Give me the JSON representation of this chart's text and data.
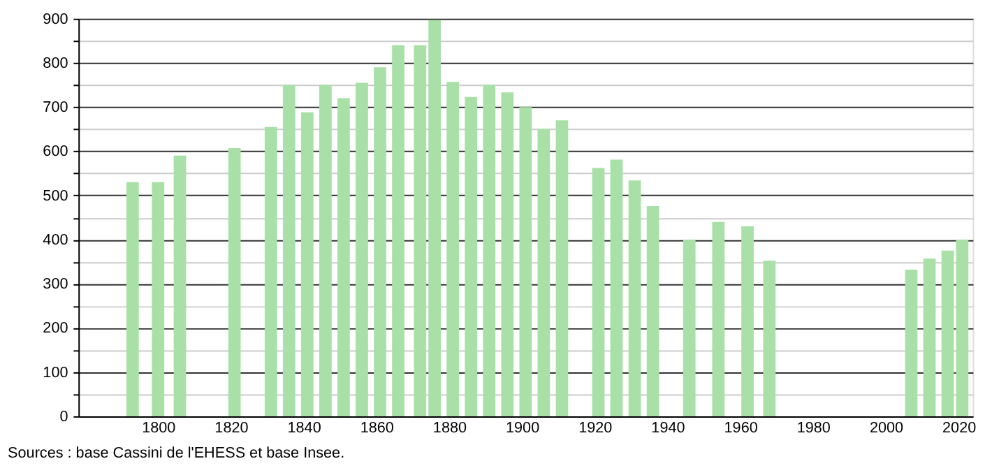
{
  "chart_data": {
    "type": "bar",
    "x": [
      1793,
      1800,
      1806,
      1821,
      1831,
      1836,
      1841,
      1846,
      1851,
      1856,
      1861,
      1866,
      1872,
      1876,
      1881,
      1886,
      1891,
      1896,
      1901,
      1906,
      1911,
      1921,
      1926,
      1931,
      1936,
      1946,
      1954,
      1962,
      1968,
      2007,
      2012,
      2017,
      2021
    ],
    "values": [
      530,
      530,
      590,
      607,
      655,
      750,
      688,
      750,
      720,
      755,
      790,
      840,
      840,
      897,
      757,
      723,
      750,
      733,
      700,
      650,
      670,
      562,
      581,
      534,
      476,
      400,
      440,
      430,
      352,
      332,
      357,
      375,
      400
    ],
    "color": "#a8e0a8",
    "xlim": [
      1780,
      2022
    ],
    "xticks": [
      1800,
      1820,
      1840,
      1860,
      1880,
      1900,
      1920,
      1940,
      1960,
      1980,
      2000,
      2020
    ],
    "ylim": [
      0,
      900
    ],
    "yticks": [
      0,
      {
        "value": 50,
        "label": null
      },
      100,
      {
        "value": 150,
        "label": null
      },
      200,
      {
        "value": 250,
        "label": null
      },
      300,
      {
        "value": 350,
        "label": null
      },
      400,
      {
        "value": 450,
        "label": null
      },
      500,
      {
        "value": 550,
        "label": null
      },
      600,
      {
        "value": 650,
        "label": null
      },
      700,
      {
        "value": 750,
        "label": null
      },
      800,
      {
        "value": 850,
        "label": null
      },
      900
    ],
    "grid": "y",
    "annotations": [
      "Sources : base Cassini de l'EHESS et base Insee."
    ]
  }
}
